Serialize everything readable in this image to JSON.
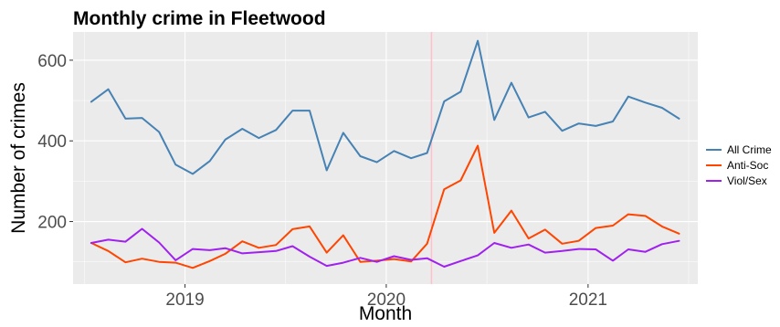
{
  "chart_data": {
    "type": "line",
    "title": "Monthly crime in Fleetwood",
    "xlabel": "Month",
    "ylabel": "Number of crimes",
    "x": [
      "2018-07",
      "2018-08",
      "2018-09",
      "2018-10",
      "2018-11",
      "2018-12",
      "2019-01",
      "2019-02",
      "2019-03",
      "2019-04",
      "2019-05",
      "2019-06",
      "2019-07",
      "2019-08",
      "2019-09",
      "2019-10",
      "2019-11",
      "2019-12",
      "2020-01",
      "2020-02",
      "2020-03",
      "2020-04",
      "2020-05",
      "2020-06",
      "2020-07",
      "2020-08",
      "2020-09",
      "2020-10",
      "2020-11",
      "2020-12",
      "2021-01",
      "2021-02",
      "2021-03",
      "2021-04",
      "2021-05",
      "2021-06"
    ],
    "xlim": [
      "2018-06-12",
      "2021-07-19"
    ],
    "x_ticks": [
      {
        "date": "2019-01-01",
        "label": "2019"
      },
      {
        "date": "2020-01-01",
        "label": "2020"
      },
      {
        "date": "2021-01-01",
        "label": "2021"
      }
    ],
    "ylim": [
      45,
      670
    ],
    "y_ticks": [
      200,
      400,
      600
    ],
    "grid": true,
    "vline": {
      "date": "2020-03-23",
      "color": "#ffc0cb"
    },
    "legend_position": "right",
    "series": [
      {
        "name": "All Crime",
        "color": "#4682b4",
        "values": [
          497,
          528,
          455,
          457,
          422,
          341,
          318,
          350,
          403,
          430,
          407,
          427,
          475,
          475,
          327,
          420,
          362,
          347,
          375,
          357,
          370,
          498,
          522,
          648,
          452,
          544,
          458,
          472,
          425,
          443,
          437,
          448,
          510,
          495,
          482,
          455
        ]
      },
      {
        "name": "Anti-Soc",
        "color": "#ff4500",
        "values": [
          147,
          127,
          99,
          108,
          100,
          98,
          85,
          102,
          120,
          151,
          135,
          142,
          181,
          188,
          123,
          166,
          100,
          103,
          107,
          101,
          145,
          280,
          302,
          388,
          172,
          227,
          158,
          180,
          145,
          152,
          184,
          190,
          218,
          214,
          188,
          170
        ]
      },
      {
        "name": "Viol/Sex",
        "color": "#a020f0",
        "values": [
          147,
          155,
          150,
          182,
          148,
          104,
          132,
          129,
          134,
          121,
          124,
          127,
          139,
          113,
          90,
          98,
          110,
          100,
          114,
          105,
          109,
          88,
          102,
          116,
          147,
          135,
          143,
          123,
          127,
          132,
          131,
          103,
          131,
          125,
          144,
          152
        ]
      }
    ]
  }
}
